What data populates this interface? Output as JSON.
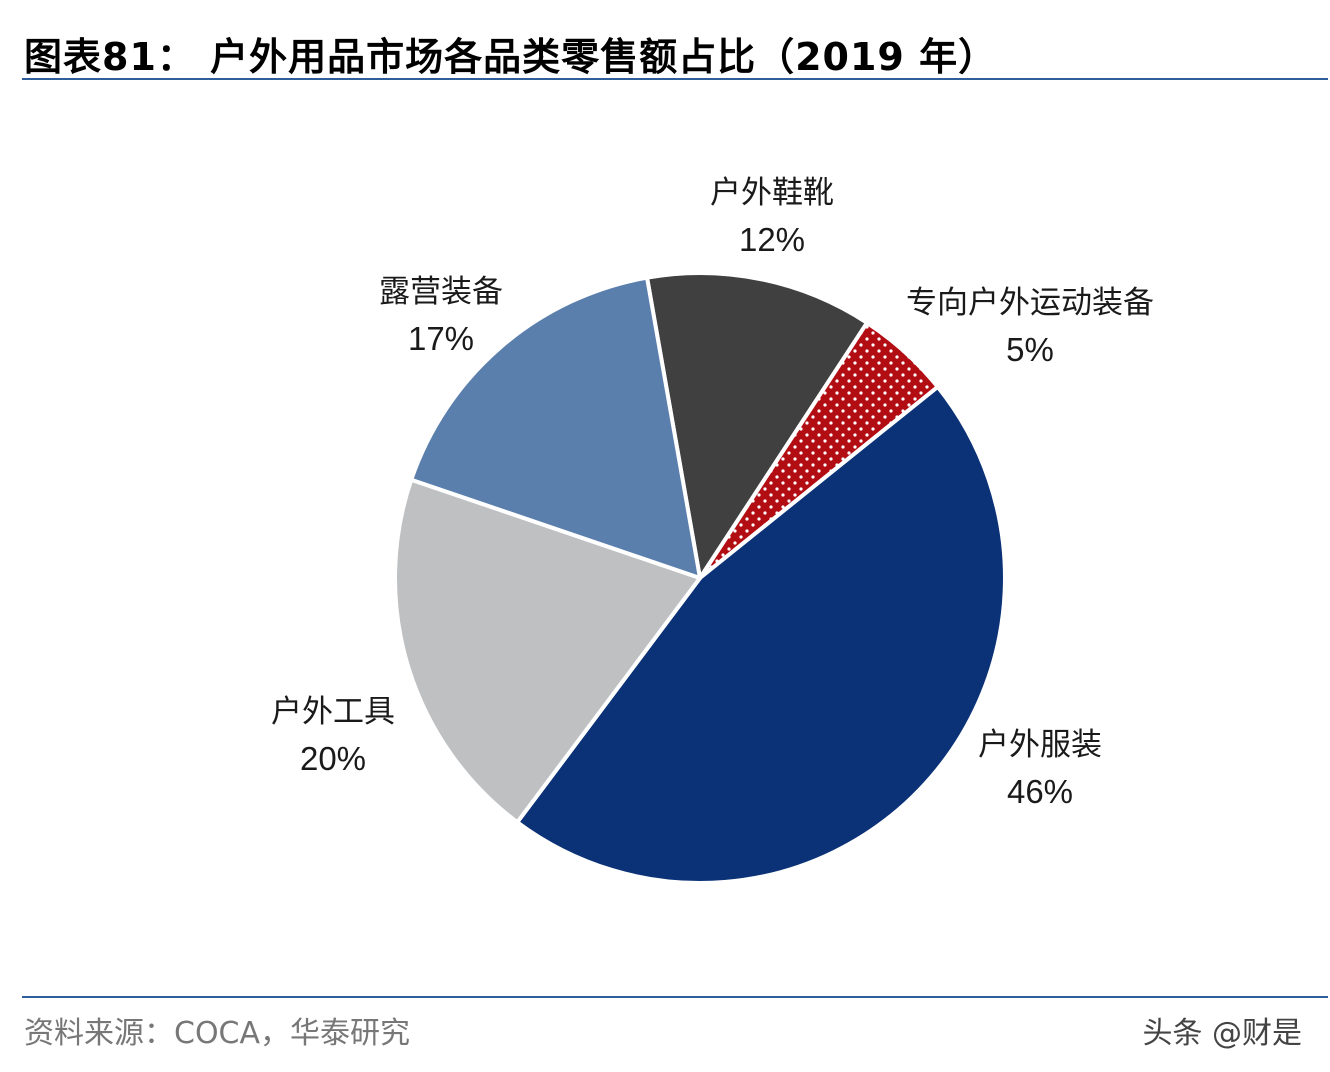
{
  "page": {
    "title": "图表81：  户外用品市场各品类零售额占比（2019 年）",
    "source": "资料来源：COCA，华泰研究",
    "watermark": "头条 @财是"
  },
  "chart_data": {
    "type": "pie",
    "title": "户外用品市场各品类零售额占比（2019 年）",
    "slices": [
      {
        "label": "户外鞋靴",
        "value": 12,
        "value_label": "12%",
        "color": "#404040"
      },
      {
        "label": "专向户外运动装备",
        "value": 5,
        "value_label": "5%",
        "color": "#b30d14",
        "pattern": "white-dots"
      },
      {
        "label": "户外服装",
        "value": 46,
        "value_label": "46%",
        "color": "#0b3277"
      },
      {
        "label": "户外工具",
        "value": 20,
        "value_label": "20%",
        "color": "#bfc0c2"
      },
      {
        "label": "露营装备",
        "value": 17,
        "value_label": "17%",
        "color": "#5b7fad"
      }
    ],
    "start_angle_deg": -10,
    "direction": "clockwise"
  }
}
